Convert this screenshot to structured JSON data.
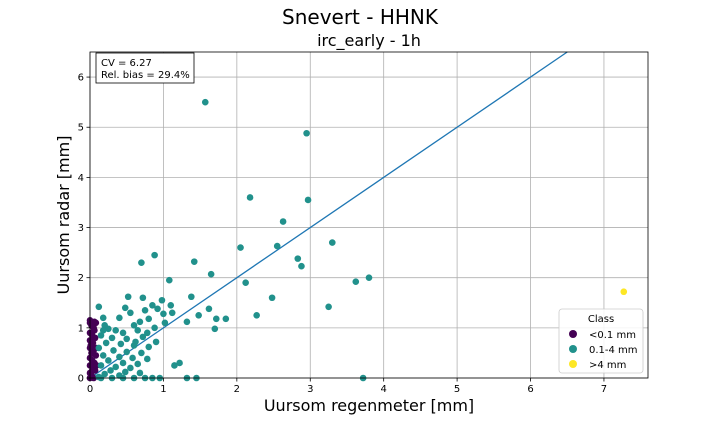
{
  "chart_data": {
    "type": "scatter",
    "suptitle": "Snevert - HHNK",
    "title": "irc_early - 1h",
    "xlabel": "Uursom regenmeter [mm]",
    "ylabel": "Uursom radar [mm]",
    "xlim": [
      0,
      7.6
    ],
    "ylim": [
      0,
      6.5
    ],
    "xticks": [
      "0",
      "1",
      "2",
      "3",
      "4",
      "5",
      "6",
      "7"
    ],
    "yticks": [
      "0",
      "1",
      "2",
      "3",
      "4",
      "5",
      "6"
    ],
    "grid": true,
    "annotation": {
      "cv": "CV = 6.27",
      "bias": "Rel. bias = 29.4%"
    },
    "fit_line": {
      "slope": 1.0,
      "intercept": 0.0
    },
    "legend": {
      "title": "Class",
      "position": "lower-right",
      "entries": [
        "<0.1 mm",
        "0.1-4 mm",
        ">4 mm"
      ]
    },
    "colors": {
      "low": "#440154",
      "mid": "#21918c",
      "high": "#fde725",
      "line": "#1f77b4"
    },
    "series": [
      {
        "name": "<0.1 mm",
        "points": [
          [
            0.0,
            1.1
          ],
          [
            0.02,
            1.05
          ],
          [
            0.05,
            1.0
          ],
          [
            0.08,
            1.1
          ],
          [
            0.0,
            0.9
          ],
          [
            0.03,
            0.85
          ],
          [
            0.06,
            0.95
          ],
          [
            0.0,
            0.75
          ],
          [
            0.04,
            0.7
          ],
          [
            0.07,
            0.8
          ],
          [
            0.0,
            0.6
          ],
          [
            0.05,
            0.55
          ],
          [
            0.02,
            0.5
          ],
          [
            0.08,
            0.45
          ],
          [
            0.0,
            0.4
          ],
          [
            0.03,
            0.35
          ],
          [
            0.06,
            0.3
          ],
          [
            0.0,
            0.25
          ],
          [
            0.04,
            0.2
          ],
          [
            0.07,
            0.15
          ],
          [
            0.0,
            0.1
          ],
          [
            0.02,
            0.05
          ],
          [
            0.05,
            0.0
          ],
          [
            0.0,
            0.0
          ],
          [
            0.08,
            0.6
          ],
          [
            0.01,
            0.65
          ],
          [
            0.09,
            0.25
          ],
          [
            0.0,
            1.15
          ],
          [
            0.06,
            1.12
          ],
          [
            0.03,
            0.15
          ]
        ]
      },
      {
        "name": "0.1-4 mm",
        "points": [
          [
            1.57,
            5.5
          ],
          [
            2.95,
            4.88
          ],
          [
            2.97,
            3.55
          ],
          [
            2.18,
            3.6
          ],
          [
            2.63,
            3.12
          ],
          [
            0.88,
            2.45
          ],
          [
            1.42,
            2.32
          ],
          [
            0.7,
            2.3
          ],
          [
            2.05,
            2.6
          ],
          [
            2.55,
            2.63
          ],
          [
            3.3,
            2.7
          ],
          [
            1.65,
            2.07
          ],
          [
            3.8,
            2.0
          ],
          [
            3.62,
            1.92
          ],
          [
            2.83,
            2.38
          ],
          [
            2.88,
            2.23
          ],
          [
            1.08,
            1.95
          ],
          [
            2.12,
            1.9
          ],
          [
            1.38,
            1.62
          ],
          [
            0.52,
            1.62
          ],
          [
            0.72,
            1.6
          ],
          [
            2.48,
            1.6
          ],
          [
            0.98,
            1.55
          ],
          [
            3.25,
            1.42
          ],
          [
            0.12,
            1.42
          ],
          [
            1.1,
            1.45
          ],
          [
            0.85,
            1.45
          ],
          [
            0.48,
            1.4
          ],
          [
            1.62,
            1.38
          ],
          [
            0.75,
            1.35
          ],
          [
            0.92,
            1.38
          ],
          [
            0.55,
            1.3
          ],
          [
            1.12,
            1.3
          ],
          [
            1.0,
            1.28
          ],
          [
            1.48,
            1.25
          ],
          [
            1.72,
            1.18
          ],
          [
            1.85,
            1.18
          ],
          [
            2.27,
            1.25
          ],
          [
            0.18,
            1.2
          ],
          [
            0.4,
            1.2
          ],
          [
            0.8,
            1.18
          ],
          [
            1.02,
            1.1
          ],
          [
            0.68,
            1.12
          ],
          [
            1.32,
            1.12
          ],
          [
            0.2,
            1.05
          ],
          [
            0.6,
            1.05
          ],
          [
            0.88,
            1.0
          ],
          [
            0.25,
            0.98
          ],
          [
            0.35,
            0.95
          ],
          [
            0.45,
            0.9
          ],
          [
            0.65,
            0.95
          ],
          [
            0.78,
            0.9
          ],
          [
            1.7,
            0.98
          ],
          [
            0.15,
            0.85
          ],
          [
            0.3,
            0.8
          ],
          [
            0.5,
            0.78
          ],
          [
            0.72,
            0.82
          ],
          [
            0.9,
            0.72
          ],
          [
            0.22,
            0.7
          ],
          [
            0.42,
            0.68
          ],
          [
            0.6,
            0.65
          ],
          [
            0.8,
            0.62
          ],
          [
            0.12,
            0.6
          ],
          [
            0.32,
            0.55
          ],
          [
            0.5,
            0.52
          ],
          [
            0.7,
            0.5
          ],
          [
            0.18,
            0.45
          ],
          [
            0.4,
            0.42
          ],
          [
            0.58,
            0.4
          ],
          [
            0.78,
            0.38
          ],
          [
            0.25,
            0.35
          ],
          [
            0.45,
            0.3
          ],
          [
            0.65,
            0.28
          ],
          [
            0.15,
            0.25
          ],
          [
            0.35,
            0.22
          ],
          [
            0.55,
            0.2
          ],
          [
            1.22,
            0.3
          ],
          [
            1.15,
            0.25
          ],
          [
            0.28,
            0.15
          ],
          [
            0.48,
            0.12
          ],
          [
            0.68,
            0.1
          ],
          [
            0.2,
            0.08
          ],
          [
            0.4,
            0.05
          ],
          [
            0.12,
            0.02
          ],
          [
            0.15,
            0.0
          ],
          [
            0.3,
            0.0
          ],
          [
            0.45,
            0.0
          ],
          [
            0.6,
            0.0
          ],
          [
            0.75,
            0.0
          ],
          [
            0.85,
            0.0
          ],
          [
            0.95,
            0.0
          ],
          [
            1.32,
            0.0
          ],
          [
            1.45,
            0.0
          ],
          [
            3.72,
            0.0
          ],
          [
            0.18,
            0.95
          ],
          [
            0.62,
            0.72
          ]
        ]
      },
      {
        "name": ">4 mm",
        "points": [
          [
            7.27,
            1.72
          ]
        ]
      }
    ]
  }
}
